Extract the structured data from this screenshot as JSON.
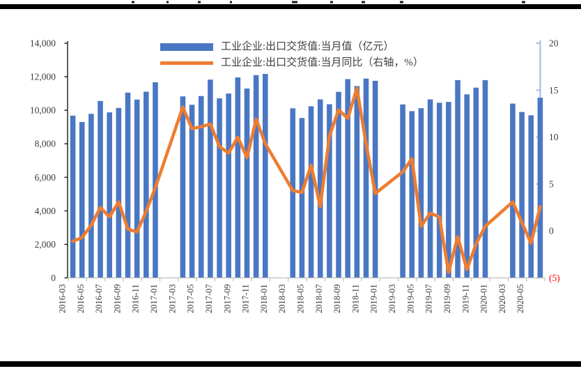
{
  "figure": {
    "kind": "research-report chart cropped between two black rules",
    "legend": {
      "bar_label": "工业企业:出口交货值:当月值（亿元）",
      "line_label": "工业企业:出口交货值:当月同比（右轴，%）"
    }
  },
  "chart_data": {
    "type": "bar+line",
    "title": "",
    "grid": false,
    "legend_position": "top-center",
    "categories": [
      "2016-03",
      "2016-04",
      "2016-05",
      "2016-06",
      "2016-07",
      "2016-08",
      "2016-09",
      "2016-10",
      "2016-11",
      "2016-12",
      "2017-01",
      "2017-02",
      "2017-03",
      "2017-04",
      "2017-05",
      "2017-06",
      "2017-07",
      "2017-08",
      "2017-09",
      "2017-10",
      "2017-11",
      "2017-12",
      "2018-01",
      "2018-02",
      "2018-03",
      "2018-04",
      "2018-05",
      "2018-06",
      "2018-07",
      "2018-08",
      "2018-09",
      "2018-10",
      "2018-11",
      "2018-12",
      "2019-01",
      "2019-02",
      "2019-03",
      "2019-04",
      "2019-05",
      "2019-06",
      "2019-07",
      "2019-08",
      "2019-09",
      "2019-10",
      "2019-11",
      "2019-12",
      "2020-01",
      "2020-02",
      "2020-03",
      "2020-04",
      "2020-05",
      "2020-06"
    ],
    "x_tick_labels": [
      "2016-03",
      "2016-05",
      "2016-07",
      "2016-09",
      "2016-11",
      "2017-01",
      "2017-03",
      "2017-05",
      "2017-07",
      "2017-09",
      "2017-11",
      "2018-01",
      "2018-03",
      "2018-05",
      "2018-07",
      "2018-09",
      "2018-11",
      "2019-01",
      "2019-03",
      "2019-05",
      "2019-07",
      "2019-09",
      "2019-11",
      "2020-01",
      "2020-03",
      "2020-05"
    ],
    "series": [
      {
        "name": "工业企业:出口交货值:当月值（亿元）",
        "type": "bar",
        "axis": "left",
        "color": "#4A77C4",
        "values": [
          9680,
          9300,
          9790,
          10555,
          9875,
          10140,
          11055,
          10640,
          11110,
          11670,
          null,
          null,
          10830,
          10330,
          10850,
          11830,
          10710,
          11000,
          11960,
          11300,
          12100,
          12170,
          null,
          null,
          10120,
          9540,
          10240,
          10650,
          10360,
          11100,
          11860,
          11445,
          11890,
          11760,
          null,
          null,
          10350,
          9950,
          10125,
          10650,
          10450,
          10500,
          11800,
          10950,
          11350,
          11800,
          null,
          null,
          10400,
          9900,
          9700,
          10750
        ]
      },
      {
        "name": "工业企业:出口交货值:当月同比（右轴，%）",
        "type": "line",
        "axis": "right",
        "color": "#ED7D31",
        "values": [
          -1.1,
          -0.7,
          0.6,
          2.5,
          1.5,
          3.1,
          0.2,
          -0.1,
          2.1,
          4.6,
          null,
          null,
          13.2,
          10.9,
          11.1,
          11.4,
          9.0,
          8.3,
          10.0,
          7.8,
          11.9,
          9.3,
          null,
          null,
          4.3,
          4.1,
          7.0,
          2.6,
          10.1,
          12.9,
          12.0,
          15.2,
          9.3,
          4.0,
          null,
          null,
          6.3,
          7.7,
          0.5,
          1.9,
          1.5,
          -4.4,
          -0.6,
          -4.1,
          -1.4,
          0.5,
          null,
          null,
          3.1,
          0.9,
          -1.3,
          2.6
        ]
      }
    ],
    "left_axis": {
      "range": [
        0,
        14000
      ],
      "tick_labels": [
        "14,000",
        "12,000",
        "10,000",
        "8,000",
        "6,000",
        "4,000",
        "2,000",
        "0"
      ],
      "label_color": "#3b3b3b",
      "line_color": "#262626"
    },
    "right_axis": {
      "range": [
        -5,
        20
      ],
      "tick_labels": [
        "20",
        "15",
        "10",
        "5",
        "0",
        "(5)"
      ],
      "negative_label_color": "#FF0000",
      "label_color": "#3b3b3b",
      "line_color": "#9FC2E8"
    },
    "x_axis": {
      "line_color": "#BFBFBF",
      "label_color": "#3b3b3b"
    }
  }
}
